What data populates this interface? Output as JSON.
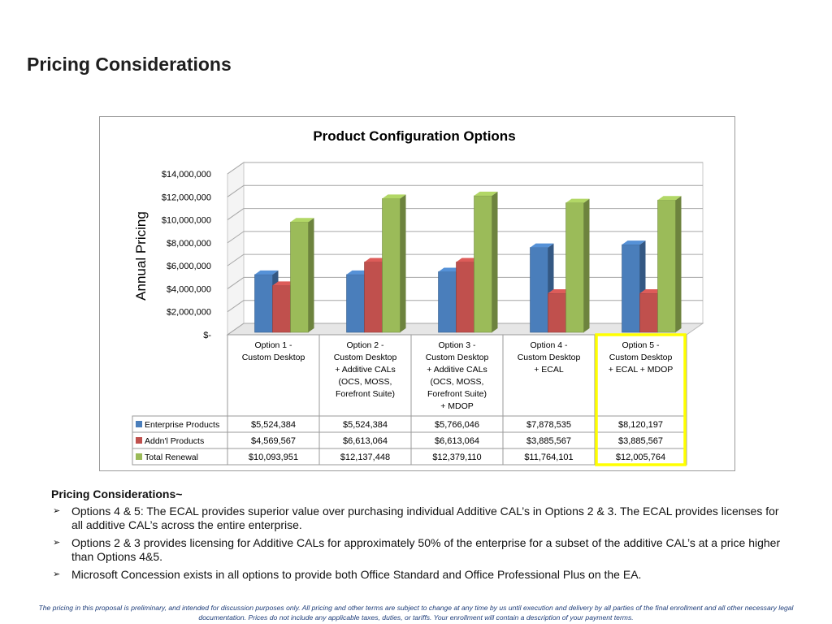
{
  "page": {
    "title": "Pricing Considerations"
  },
  "chart_data": {
    "type": "bar",
    "title": "Product Configuration Options",
    "ylabel": "Annual Pricing",
    "ylim": [
      0,
      14000000
    ],
    "yticks": [
      "$14,000,000",
      "$12,000,000",
      "$10,000,000",
      "$8,000,000",
      "$6,000,000",
      "$4,000,000",
      "$2,000,000",
      "$-"
    ],
    "ytick_values": [
      14000000,
      12000000,
      10000000,
      8000000,
      6000000,
      4000000,
      2000000,
      0
    ],
    "categories": [
      [
        "Option 1 -",
        "Custom Desktop"
      ],
      [
        "Option 2 -",
        "Custom Desktop",
        "+ Additive CALs",
        "(OCS, MOSS,",
        "Forefront Suite)"
      ],
      [
        "Option 3 -",
        "Custom Desktop",
        "+ Additive CALs",
        "(OCS, MOSS,",
        "Forefront Suite)",
        "+ MDOP"
      ],
      [
        "Option 4 -",
        "Custom Desktop",
        "+ ECAL"
      ],
      [
        "Option 5 -",
        "Custom Desktop",
        "+ ECAL + MDOP"
      ]
    ],
    "series": [
      {
        "name": "Enterprise Products",
        "color": "#4a7ebb",
        "values": [
          5524384,
          5524384,
          5766046,
          7878535,
          8120197
        ],
        "labels": [
          "$5,524,384",
          "$5,524,384",
          "$5,766,046",
          "$7,878,535",
          "$8,120,197"
        ]
      },
      {
        "name": "Addn'l Products",
        "color": "#c0504d",
        "values": [
          4569567,
          6613064,
          6613064,
          3885567,
          3885567
        ],
        "labels": [
          "$4,569,567",
          "$6,613,064",
          "$6,613,064",
          "$3,885,567",
          "$3,885,567"
        ]
      },
      {
        "name": "Total Renewal",
        "color": "#9bbb59",
        "values": [
          10093951,
          12137448,
          12379110,
          11764101,
          12005764
        ],
        "labels": [
          "$10,093,951",
          "$12,137,448",
          "$12,379,110",
          "$11,764,101",
          "$12,005,764"
        ]
      }
    ],
    "highlight_category": 4,
    "highlight_color": "#ffff00",
    "grid": true,
    "legend": "data-table"
  },
  "notes": {
    "heading": "Pricing Considerations~",
    "items": [
      "Options 4 & 5:  The ECAL provides superior value over purchasing individual Additive CAL’s  in Options 2 & 3.  The ECAL provides licenses for all additive CAL’s across the entire enterprise.",
      "Options 2 & 3 provides licensing for Additive CALs for approximately 50% of the enterprise for a subset of the additive CAL’s at a price higher than Options 4&5.",
      "Microsoft Concession exists in all options to provide both Office Standard and Office Professional Plus on the EA."
    ],
    "bullet_glyph": "➢"
  },
  "disclaimer": "The pricing  in this proposal is preliminary, and intended for discussion purposes only. All pricing and other terms are subject to change at any time by us until execution and delivery by all parties of the final enrollment and all other necessary legal documentation.  Prices do not include any applicable taxes, duties, or tariffs. Your enrollment will contain a description of your payment terms."
}
